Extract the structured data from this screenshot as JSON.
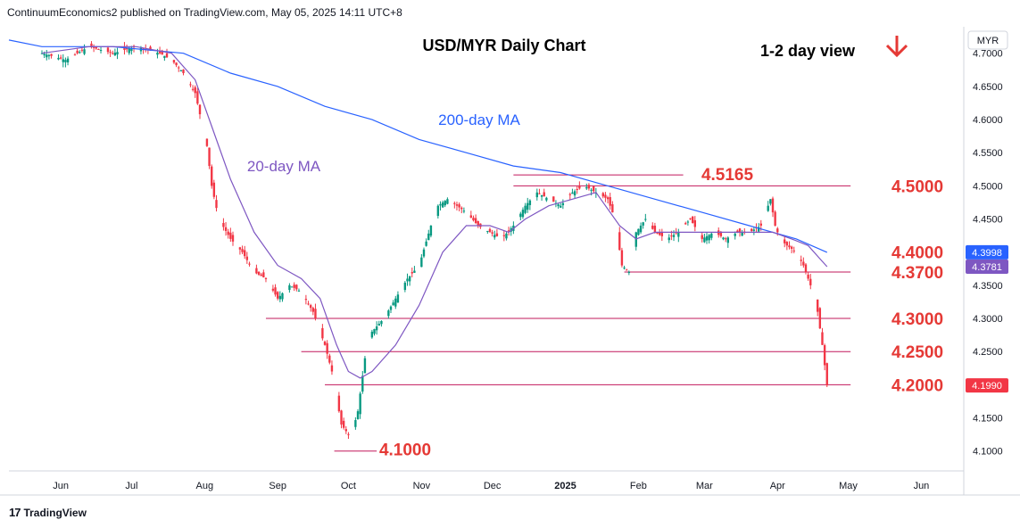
{
  "header": {
    "published": "ContinuumEconomics2 published on TradingView.com, May 05, 2025 14:11 UTC+8"
  },
  "brand": {
    "name": "TradingView",
    "logo_icon": "tv-logo-icon"
  },
  "chart_data": {
    "type": "candlestick",
    "title": "USD/MYR Daily Chart",
    "subtitle": "1-2 day view",
    "view_direction_icon": "arrow-down-icon",
    "currency_label": "MYR",
    "ylim": [
      4.07,
      4.74
    ],
    "y_ticks": [
      "4.1000",
      "4.1500",
      "4.2000",
      "4.2500",
      "4.3000",
      "4.3500",
      "4.4000",
      "4.4500",
      "4.5000",
      "4.5500",
      "4.6000",
      "4.6500",
      "4.7000"
    ],
    "x_ticks": [
      {
        "label": "Jun",
        "day": 8
      },
      {
        "label": "Jul",
        "day": 38
      },
      {
        "label": "Aug",
        "day": 69
      },
      {
        "label": "Sep",
        "day": 100
      },
      {
        "label": "Oct",
        "day": 130
      },
      {
        "label": "Nov",
        "day": 161
      },
      {
        "label": "Dec",
        "day": 191
      },
      {
        "label": "2025",
        "day": 222
      },
      {
        "label": "Feb",
        "day": 253
      },
      {
        "label": "Mar",
        "day": 281
      },
      {
        "label": "Apr",
        "day": 312
      },
      {
        "label": "May",
        "day": 342
      },
      {
        "label": "Jun",
        "day": 373
      }
    ],
    "x_start_day": -14,
    "x_end_day": 391,
    "price_path": [
      [
        0,
        4.7
      ],
      [
        10,
        4.69
      ],
      [
        20,
        4.71
      ],
      [
        30,
        4.7
      ],
      [
        40,
        4.71
      ],
      [
        50,
        4.7
      ],
      [
        55,
        4.69
      ],
      [
        60,
        4.67
      ],
      [
        65,
        4.64
      ],
      [
        70,
        4.56
      ],
      [
        72,
        4.5
      ],
      [
        75,
        4.45
      ],
      [
        80,
        4.42
      ],
      [
        85,
        4.4
      ],
      [
        90,
        4.37
      ],
      [
        95,
        4.36
      ],
      [
        100,
        4.33
      ],
      [
        105,
        4.35
      ],
      [
        110,
        4.34
      ],
      [
        115,
        4.31
      ],
      [
        120,
        4.26
      ],
      [
        123,
        4.22
      ],
      [
        127,
        4.14
      ],
      [
        131,
        4.12
      ],
      [
        134,
        4.16
      ],
      [
        137,
        4.24
      ],
      [
        140,
        4.28
      ],
      [
        145,
        4.3
      ],
      [
        150,
        4.33
      ],
      [
        155,
        4.36
      ],
      [
        160,
        4.38
      ],
      [
        165,
        4.44
      ],
      [
        168,
        4.47
      ],
      [
        172,
        4.48
      ],
      [
        180,
        4.46
      ],
      [
        185,
        4.44
      ],
      [
        190,
        4.43
      ],
      [
        195,
        4.42
      ],
      [
        200,
        4.44
      ],
      [
        205,
        4.47
      ],
      [
        210,
        4.49
      ],
      [
        215,
        4.48
      ],
      [
        220,
        4.47
      ],
      [
        225,
        4.49
      ],
      [
        230,
        4.5
      ],
      [
        235,
        4.49
      ],
      [
        240,
        4.48
      ],
      [
        243,
        4.45
      ],
      [
        246,
        4.38
      ],
      [
        249,
        4.37
      ],
      [
        252,
        4.43
      ],
      [
        256,
        4.45
      ],
      [
        260,
        4.43
      ],
      [
        265,
        4.42
      ],
      [
        270,
        4.43
      ],
      [
        275,
        4.45
      ],
      [
        280,
        4.42
      ],
      [
        285,
        4.43
      ],
      [
        290,
        4.42
      ],
      [
        295,
        4.43
      ],
      [
        300,
        4.43
      ],
      [
        305,
        4.44
      ],
      [
        309,
        4.48
      ],
      [
        311,
        4.44
      ],
      [
        313,
        4.42
      ],
      [
        316,
        4.41
      ],
      [
        320,
        4.4
      ],
      [
        323,
        4.38
      ],
      [
        326,
        4.35
      ],
      [
        329,
        4.31
      ],
      [
        331,
        4.26
      ],
      [
        333,
        4.199
      ]
    ],
    "candles_note_omitted": "",
    "ma20": [
      [
        0,
        4.7
      ],
      [
        20,
        4.71
      ],
      [
        40,
        4.71
      ],
      [
        55,
        4.7
      ],
      [
        65,
        4.66
      ],
      [
        72,
        4.59
      ],
      [
        80,
        4.51
      ],
      [
        90,
        4.43
      ],
      [
        100,
        4.38
      ],
      [
        110,
        4.36
      ],
      [
        118,
        4.33
      ],
      [
        125,
        4.26
      ],
      [
        130,
        4.22
      ],
      [
        135,
        4.21
      ],
      [
        140,
        4.22
      ],
      [
        150,
        4.26
      ],
      [
        160,
        4.32
      ],
      [
        170,
        4.4
      ],
      [
        180,
        4.44
      ],
      [
        190,
        4.44
      ],
      [
        198,
        4.43
      ],
      [
        205,
        4.45
      ],
      [
        215,
        4.47
      ],
      [
        225,
        4.48
      ],
      [
        235,
        4.49
      ],
      [
        245,
        4.44
      ],
      [
        252,
        4.42
      ],
      [
        260,
        4.43
      ],
      [
        270,
        4.43
      ],
      [
        280,
        4.43
      ],
      [
        290,
        4.43
      ],
      [
        300,
        4.43
      ],
      [
        310,
        4.43
      ],
      [
        318,
        4.42
      ],
      [
        325,
        4.41
      ],
      [
        330,
        4.39
      ],
      [
        333,
        4.3781
      ]
    ],
    "ma200": [
      [
        -14,
        4.72
      ],
      [
        0,
        4.71
      ],
      [
        30,
        4.71
      ],
      [
        60,
        4.7
      ],
      [
        80,
        4.67
      ],
      [
        100,
        4.65
      ],
      [
        120,
        4.62
      ],
      [
        140,
        4.6
      ],
      [
        160,
        4.57
      ],
      [
        180,
        4.55
      ],
      [
        200,
        4.53
      ],
      [
        220,
        4.52
      ],
      [
        240,
        4.5
      ],
      [
        260,
        4.48
      ],
      [
        280,
        4.46
      ],
      [
        300,
        4.44
      ],
      [
        320,
        4.42
      ],
      [
        333,
        4.3998
      ]
    ],
    "levels": [
      {
        "label": "4.5165",
        "value": 4.5165,
        "from_day": 200,
        "to_day": 272
      },
      {
        "label": "4.5000",
        "value": 4.5,
        "from_day": 200,
        "to_day": 343
      },
      {
        "label": "4.3700",
        "value": 4.37,
        "from_day": 247,
        "to_day": 343
      },
      {
        "label": "4.3000",
        "value": 4.3,
        "from_day": 95,
        "to_day": 343
      },
      {
        "label": "4.2500",
        "value": 4.25,
        "from_day": 110,
        "to_day": 343
      },
      {
        "label": "4.2000",
        "value": 4.2,
        "from_day": 120,
        "to_day": 343
      },
      {
        "label": "4.1000",
        "value": 4.1,
        "from_day": 124,
        "to_day": 142
      }
    ],
    "right_labels": [
      "4.5000",
      "4.4000",
      "4.3700",
      "4.3000",
      "4.2500",
      "4.2000"
    ],
    "right_label_values": [
      4.5,
      4.4,
      4.37,
      4.3,
      4.25,
      4.2
    ],
    "annotations": {
      "ma20_label": "20-day MA",
      "ma200_label": "200-day MA",
      "level_4_5165": "4.5165",
      "level_4_1000": "4.1000"
    },
    "price_tags": [
      {
        "label": "4.3998",
        "value": 4.3998,
        "color": "#2962ff"
      },
      {
        "label": "4.3781",
        "value": 4.3781,
        "color": "#7e57c2"
      },
      {
        "label": "4.1990",
        "value": 4.199,
        "color": "#f23645"
      }
    ],
    "colors": {
      "up": "#089981",
      "down": "#f23645",
      "ma20": "#7e57c2",
      "ma200": "#2962ff",
      "level_line": "#c2185b",
      "level_text": "#e53935",
      "grid": "#f0f3fa"
    }
  }
}
